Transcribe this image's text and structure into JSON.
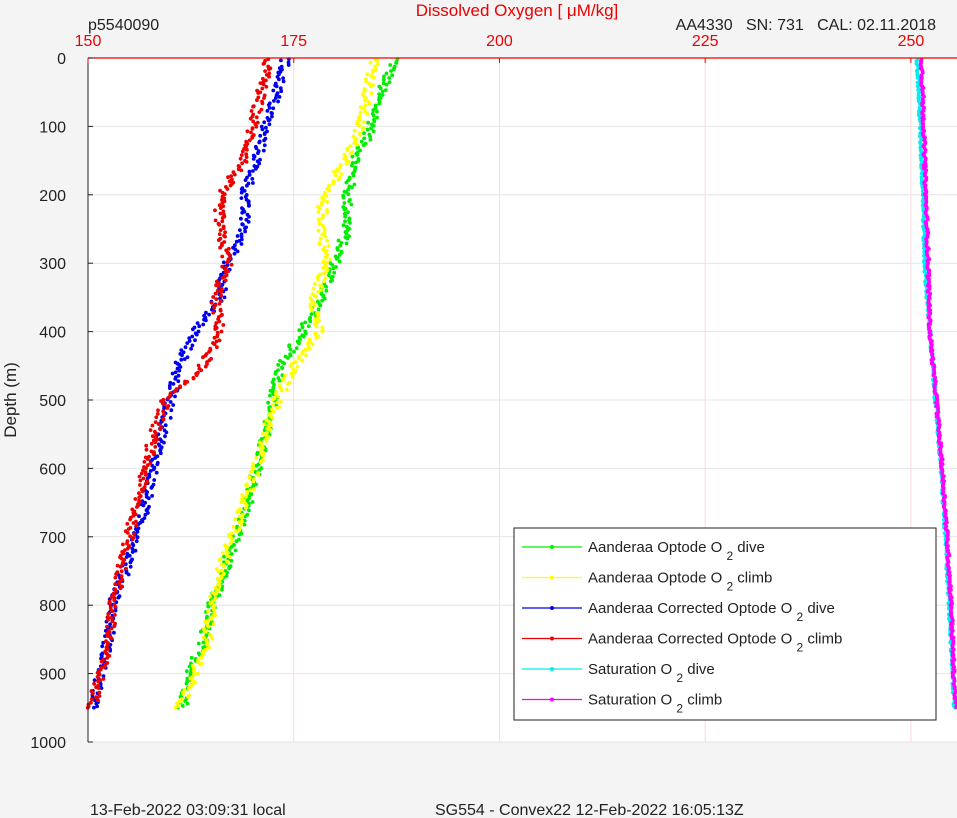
{
  "header": {
    "dive_id": "p5540090",
    "sensor_info": "AA4330   SN: 731   CAL: 02.11.2018"
  },
  "footer": {
    "local_time": "13-Feb-2022 03:09:31 local",
    "mission": "SG554 - Convex22 12-Feb-2022 16:05:13Z"
  },
  "chart_data": {
    "type": "scatter",
    "title": "Dissolved Oxygen [ μM/kg]",
    "xlabel": "Dissolved Oxygen [ μM/kg]",
    "ylabel": "Depth (m)",
    "xlim": [
      150,
      256
    ],
    "ylim": [
      0,
      1000
    ],
    "y_reversed": true,
    "x_axis_position": "top",
    "grid": true,
    "legend_position": "bottom-right",
    "xticks": [
      150,
      175,
      200,
      225,
      250
    ],
    "yticks": [
      0,
      100,
      200,
      300,
      400,
      500,
      600,
      700,
      800,
      900,
      1000
    ],
    "series": [
      {
        "name": "Aanderaa Optode O2 dive",
        "legend_main": "Aanderaa Optode O",
        "legend_sub": "2",
        "legend_tail": "dive",
        "color": "#00ee00",
        "jitter": 0.6,
        "profile": [
          [
            0,
            187.5
          ],
          [
            50,
            185.5
          ],
          [
            100,
            184.5
          ],
          [
            150,
            182.5
          ],
          [
            200,
            181.5
          ],
          [
            250,
            181.5
          ],
          [
            300,
            180
          ],
          [
            350,
            178.5
          ],
          [
            400,
            176
          ],
          [
            450,
            173.5
          ],
          [
            500,
            172.5
          ],
          [
            550,
            171.5
          ],
          [
            600,
            170.5
          ],
          [
            650,
            169.5
          ],
          [
            700,
            168
          ],
          [
            750,
            166.5
          ],
          [
            800,
            165
          ],
          [
            850,
            164
          ],
          [
            900,
            162.5
          ],
          [
            950,
            161.5
          ]
        ]
      },
      {
        "name": "Aanderaa Optode O2 climb",
        "legend_main": "Aanderaa Optode O",
        "legend_sub": "2",
        "legend_tail": "climb",
        "color": "#ffff00",
        "jitter": 0.6,
        "profile": [
          [
            0,
            185
          ],
          [
            50,
            184
          ],
          [
            100,
            183
          ],
          [
            150,
            181.5
          ],
          [
            200,
            178.5
          ],
          [
            250,
            178.5
          ],
          [
            300,
            179
          ],
          [
            350,
            177.5
          ],
          [
            400,
            178
          ],
          [
            450,
            175
          ],
          [
            500,
            173
          ],
          [
            550,
            171.5
          ],
          [
            600,
            170.5
          ],
          [
            650,
            169
          ],
          [
            700,
            167.5
          ],
          [
            750,
            166
          ],
          [
            800,
            165
          ],
          [
            850,
            164.5
          ],
          [
            900,
            163
          ],
          [
            950,
            161
          ]
        ]
      },
      {
        "name": "Aanderaa Corrected Optode O2 dive",
        "legend_main": "Aanderaa Corrected Optode O",
        "legend_sub": "2",
        "legend_tail": "dive",
        "color": "#0000ee",
        "jitter": 0.6,
        "profile": [
          [
            0,
            174
          ],
          [
            50,
            173
          ],
          [
            100,
            171.5
          ],
          [
            150,
            170.5
          ],
          [
            200,
            169
          ],
          [
            250,
            169
          ],
          [
            300,
            167
          ],
          [
            350,
            166
          ],
          [
            400,
            163
          ],
          [
            450,
            161
          ],
          [
            500,
            160
          ],
          [
            550,
            159
          ],
          [
            600,
            158
          ],
          [
            650,
            157
          ],
          [
            700,
            156
          ],
          [
            750,
            154.5
          ],
          [
            800,
            153
          ],
          [
            850,
            152.5
          ],
          [
            900,
            151.5
          ],
          [
            950,
            150.5
          ]
        ]
      },
      {
        "name": "Aanderaa Corrected Optode O2 climb",
        "legend_main": "Aanderaa Corrected Optode O",
        "legend_sub": "2",
        "legend_tail": "climb",
        "color": "#ee0000",
        "jitter": 0.6,
        "profile": [
          [
            0,
            172
          ],
          [
            50,
            171
          ],
          [
            100,
            170
          ],
          [
            150,
            169
          ],
          [
            200,
            166
          ],
          [
            250,
            166
          ],
          [
            300,
            167
          ],
          [
            350,
            165.5
          ],
          [
            400,
            166
          ],
          [
            450,
            164
          ],
          [
            500,
            159.5
          ],
          [
            550,
            158
          ],
          [
            600,
            157
          ],
          [
            650,
            156
          ],
          [
            700,
            155
          ],
          [
            750,
            154
          ],
          [
            800,
            153
          ],
          [
            850,
            152.5
          ],
          [
            900,
            151.5
          ],
          [
            950,
            150.5
          ]
        ]
      },
      {
        "name": "Saturation O2 dive",
        "legend_main": "Saturation O",
        "legend_sub": "2",
        "legend_tail": "dive",
        "color": "#00eeee",
        "jitter": 0.15,
        "profile": [
          [
            0,
            250.8
          ],
          [
            200,
            251.5
          ],
          [
            300,
            251.7
          ],
          [
            400,
            252.3
          ],
          [
            500,
            253
          ],
          [
            600,
            253.7
          ],
          [
            700,
            254.2
          ],
          [
            800,
            254.7
          ],
          [
            900,
            255.1
          ],
          [
            950,
            255.3
          ]
        ]
      },
      {
        "name": "Saturation O2 climb",
        "legend_main": "Saturation O",
        "legend_sub": "2",
        "legend_tail": "climb",
        "color": "#ff00ff",
        "jitter": 0.15,
        "profile": [
          [
            0,
            251.3
          ],
          [
            200,
            251.8
          ],
          [
            300,
            252.1
          ],
          [
            400,
            252.3
          ],
          [
            500,
            253.1
          ],
          [
            600,
            253.8
          ],
          [
            700,
            254.4
          ],
          [
            800,
            254.9
          ],
          [
            900,
            255.2
          ],
          [
            950,
            255.5
          ]
        ]
      }
    ]
  }
}
